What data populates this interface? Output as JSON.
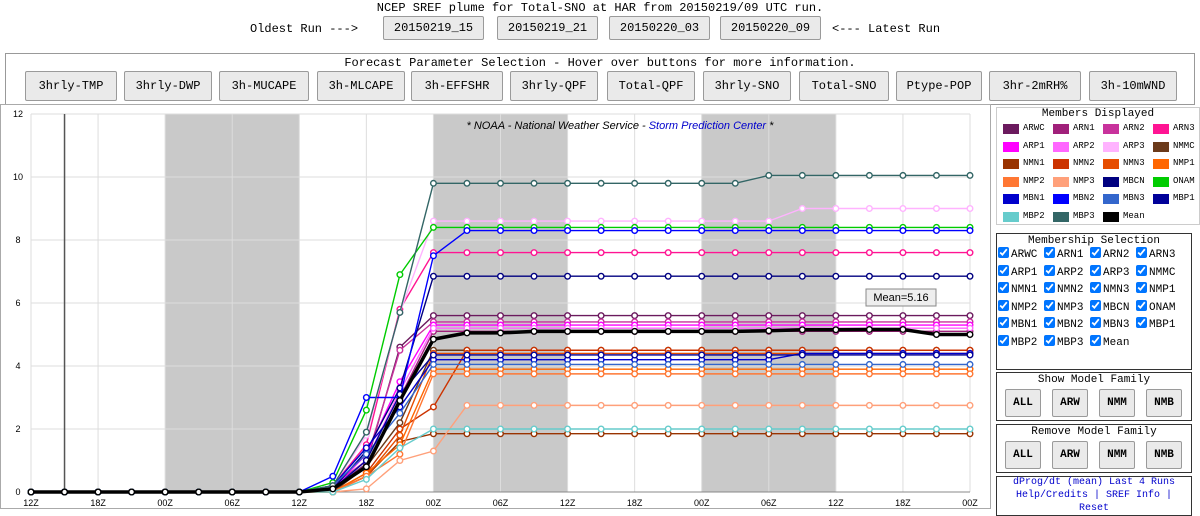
{
  "header": {
    "title": "NCEP SREF plume for Total-SNO at HAR from 20150219/09 UTC run.",
    "oldest_label": "Oldest Run --->",
    "runs": [
      "20150219_15",
      "20150219_21",
      "20150220_03",
      "20150220_09"
    ],
    "latest_label": "<--- Latest Run"
  },
  "parameters": {
    "title": "Forecast Parameter Selection - Hover over buttons for more information.",
    "buttons": [
      "3hrly-TMP",
      "3hrly-DWP",
      "3h-MUCAPE",
      "3h-MLCAPE",
      "3h-EFFSHR",
      "3hrly-QPF",
      "Total-QPF",
      "3hrly-SNO",
      "Total-SNO",
      "Ptype-POP",
      "3hr-2mRH%",
      "3h-10mWND"
    ]
  },
  "chart_data": {
    "type": "line",
    "watermark": {
      "prefix": "* NOAA - National Weather Service - ",
      "link": "Storm Prediction Center",
      "suffix": " *"
    },
    "categories": [
      "12Z",
      null,
      "18Z",
      null,
      "00Z",
      null,
      "06Z",
      null,
      "12Z",
      null,
      "18Z",
      null,
      "00Z",
      null,
      "06Z",
      null,
      "12Z",
      null,
      "18Z",
      null,
      "00Z",
      null,
      "06Z",
      null,
      "12Z",
      null,
      "18Z",
      null,
      "00Z"
    ],
    "ylim": [
      0,
      12
    ],
    "yticks": [
      0,
      2,
      4,
      6,
      8,
      10,
      12
    ],
    "grid": true,
    "tooltip": "Mean=5.16",
    "series": [
      {
        "name": "ARWC",
        "color": "#6b1a5e",
        "values": [
          0,
          0,
          0,
          0,
          0,
          0,
          0,
          0,
          0,
          0.1,
          0.9,
          4.6,
          5.6,
          5.6,
          5.6,
          5.6,
          5.6,
          5.6,
          5.6,
          5.6,
          5.6,
          5.6,
          5.6,
          5.6,
          5.6,
          5.6,
          5.6,
          5.6,
          5.6
        ]
      },
      {
        "name": "ARN1",
        "color": "#a0207a",
        "values": [
          0,
          0,
          0,
          0,
          0,
          0,
          0,
          0,
          0,
          0.1,
          0.8,
          3.0,
          5.1,
          5.1,
          5.1,
          5.1,
          5.1,
          5.1,
          5.1,
          5.1,
          5.1,
          5.1,
          5.1,
          5.1,
          5.1,
          5.1,
          5.1,
          5.1,
          5.1
        ]
      },
      {
        "name": "ARN2",
        "color": "#c8329c",
        "values": [
          0,
          0,
          0,
          0,
          0,
          0,
          0,
          0,
          0,
          0.2,
          1.0,
          4.5,
          5.4,
          5.4,
          5.4,
          5.4,
          5.4,
          5.4,
          5.4,
          5.4,
          5.4,
          5.4,
          5.4,
          5.4,
          5.4,
          5.4,
          5.4,
          5.4,
          5.4
        ]
      },
      {
        "name": "ARN3",
        "color": "#ff1493",
        "values": [
          0,
          0,
          0,
          0,
          0,
          0,
          0,
          0,
          0,
          0.2,
          1.5,
          5.8,
          7.6,
          7.6,
          7.6,
          7.6,
          7.6,
          7.6,
          7.6,
          7.6,
          7.6,
          7.6,
          7.6,
          7.6,
          7.6,
          7.6,
          7.6,
          7.6,
          7.6
        ]
      },
      {
        "name": "ARP1",
        "color": "#ff00ff",
        "values": [
          0,
          0,
          0,
          0,
          0,
          0,
          0,
          0,
          0,
          0.1,
          1.2,
          3.5,
          5.3,
          5.3,
          5.3,
          5.3,
          5.3,
          5.3,
          5.3,
          5.3,
          5.3,
          5.3,
          5.3,
          5.3,
          5.3,
          5.3,
          5.3,
          5.3,
          5.3
        ]
      },
      {
        "name": "ARP2",
        "color": "#ff66ff",
        "values": [
          0,
          0,
          0,
          0,
          0,
          0,
          0,
          0,
          0,
          0.1,
          1.0,
          3.2,
          5.2,
          5.2,
          5.2,
          5.2,
          5.2,
          5.2,
          5.2,
          5.2,
          5.2,
          5.2,
          5.2,
          5.2,
          5.2,
          5.2,
          5.2,
          5.2,
          5.2
        ]
      },
      {
        "name": "ARP3",
        "color": "#ffb3ff",
        "values": [
          0,
          0,
          0,
          0,
          0,
          0,
          0,
          0,
          0,
          0.2,
          1.8,
          5.7,
          8.6,
          8.6,
          8.6,
          8.6,
          8.6,
          8.6,
          8.6,
          8.6,
          8.6,
          8.6,
          8.6,
          9.0,
          9.0,
          9.0,
          9.0,
          9.0,
          9.0
        ]
      },
      {
        "name": "NMMC",
        "color": "#6b3a1a",
        "values": [
          0,
          0,
          0,
          0,
          0,
          0,
          0,
          0,
          0,
          0,
          0.8,
          2.2,
          4.5,
          4.5,
          4.5,
          4.5,
          4.5,
          4.5,
          4.5,
          4.5,
          4.5,
          4.5,
          4.5,
          4.5,
          4.5,
          4.5,
          4.5,
          4.5,
          4.5
        ]
      },
      {
        "name": "NMN1",
        "color": "#993300",
        "values": [
          0,
          0,
          0,
          0,
          0,
          0,
          0,
          0,
          0,
          0,
          0.5,
          1.6,
          1.85,
          1.85,
          1.85,
          1.85,
          1.85,
          1.85,
          1.85,
          1.85,
          1.85,
          1.85,
          1.85,
          1.85,
          1.85,
          1.85,
          1.85,
          1.85,
          1.85
        ]
      },
      {
        "name": "NMN2",
        "color": "#cc3300",
        "values": [
          0,
          0,
          0,
          0,
          0,
          0,
          0,
          0,
          0,
          0,
          0.6,
          2.0,
          2.7,
          4.5,
          4.5,
          4.5,
          4.5,
          4.5,
          4.5,
          4.5,
          4.5,
          4.5,
          4.5,
          4.5,
          4.5,
          4.5,
          4.5,
          4.5,
          4.5
        ]
      },
      {
        "name": "NMN3",
        "color": "#e64d00",
        "values": [
          0,
          0,
          0,
          0,
          0,
          0,
          0,
          0,
          0,
          0,
          0.5,
          1.8,
          4.4,
          4.4,
          4.4,
          4.4,
          4.4,
          4.4,
          4.4,
          4.4,
          4.4,
          4.4,
          4.4,
          4.4,
          4.4,
          4.4,
          4.4,
          4.4,
          4.4
        ]
      },
      {
        "name": "NMP1",
        "color": "#ff6600",
        "values": [
          0,
          0,
          0,
          0,
          0,
          0,
          0,
          0,
          0,
          0,
          0.6,
          1.5,
          3.9,
          3.9,
          3.9,
          3.9,
          3.9,
          3.9,
          3.9,
          3.9,
          3.9,
          3.9,
          3.9,
          3.9,
          3.9,
          3.9,
          3.9,
          3.9,
          3.9
        ]
      },
      {
        "name": "NMP2",
        "color": "#ff7733",
        "values": [
          0,
          0,
          0,
          0,
          0,
          0,
          0,
          0,
          0,
          0,
          0.5,
          1.2,
          3.75,
          3.75,
          3.75,
          3.75,
          3.75,
          3.75,
          3.75,
          3.75,
          3.75,
          3.75,
          3.75,
          3.75,
          3.75,
          3.75,
          3.75,
          3.75,
          3.75
        ]
      },
      {
        "name": "NMP3",
        "color": "#ffa07a",
        "values": [
          0,
          0,
          0,
          0,
          0,
          0,
          0,
          0,
          0,
          0,
          0.1,
          1.0,
          1.3,
          2.75,
          2.75,
          2.75,
          2.75,
          2.75,
          2.75,
          2.75,
          2.75,
          2.75,
          2.75,
          2.75,
          2.75,
          2.75,
          2.75,
          2.75,
          2.75
        ]
      },
      {
        "name": "MBCN",
        "color": "#000080",
        "values": [
          0,
          0,
          0,
          0,
          0,
          0,
          0,
          0,
          0,
          0.1,
          1.3,
          3.3,
          6.85,
          6.85,
          6.85,
          6.85,
          6.85,
          6.85,
          6.85,
          6.85,
          6.85,
          6.85,
          6.85,
          6.85,
          6.85,
          6.85,
          6.85,
          6.85,
          6.85
        ]
      },
      {
        "name": "ONAM",
        "color": "#00cc00",
        "values": [
          0,
          0,
          0,
          0,
          0,
          0,
          0,
          0,
          0,
          0.3,
          2.6,
          6.9,
          8.4,
          8.4,
          8.4,
          8.4,
          8.4,
          8.4,
          8.4,
          8.4,
          8.4,
          8.4,
          8.4,
          8.4,
          8.4,
          8.4,
          8.4,
          8.4,
          8.4
        ]
      },
      {
        "name": "MBN1",
        "color": "#0000cc",
        "values": [
          0,
          0,
          0,
          0,
          0,
          0,
          0,
          0,
          0,
          0.2,
          1.4,
          2.7,
          4.2,
          4.2,
          4.2,
          4.2,
          4.2,
          4.2,
          4.2,
          4.2,
          4.2,
          4.2,
          4.2,
          4.4,
          4.4,
          4.4,
          4.4,
          4.4,
          4.4
        ]
      },
      {
        "name": "MBN2",
        "color": "#0000ff",
        "values": [
          0,
          0,
          0,
          0,
          0,
          0,
          0,
          0,
          0,
          0.5,
          3.0,
          3.0,
          7.5,
          8.3,
          8.3,
          8.3,
          8.3,
          8.3,
          8.3,
          8.3,
          8.3,
          8.3,
          8.3,
          8.3,
          8.3,
          8.3,
          8.3,
          8.3,
          8.3
        ]
      },
      {
        "name": "MBN3",
        "color": "#3366cc",
        "values": [
          0,
          0,
          0,
          0,
          0,
          0,
          0,
          0,
          0,
          0.2,
          1.2,
          2.5,
          4.05,
          4.05,
          4.05,
          4.05,
          4.05,
          4.05,
          4.05,
          4.05,
          4.05,
          4.05,
          4.05,
          4.05,
          4.05,
          4.05,
          4.05,
          4.05,
          4.05
        ]
      },
      {
        "name": "MBP1",
        "color": "#000099",
        "values": [
          0,
          0,
          0,
          0,
          0,
          0,
          0,
          0,
          0,
          0.1,
          1.0,
          3.1,
          4.35,
          4.35,
          4.35,
          4.35,
          4.35,
          4.35,
          4.35,
          4.35,
          4.35,
          4.35,
          4.35,
          4.35,
          4.35,
          4.35,
          4.35,
          4.35,
          4.35
        ]
      },
      {
        "name": "MBP2",
        "color": "#66cccc",
        "values": [
          0,
          0,
          0,
          0,
          0,
          0,
          0,
          0,
          0,
          0,
          0.4,
          1.4,
          2.0,
          2.0,
          2.0,
          2.0,
          2.0,
          2.0,
          2.0,
          2.0,
          2.0,
          2.0,
          2.0,
          2.0,
          2.0,
          2.0,
          2.0,
          2.0,
          2.0
        ]
      },
      {
        "name": "MBP3",
        "color": "#336666",
        "values": [
          0,
          0,
          0,
          0,
          0,
          0,
          0,
          0,
          0,
          0.2,
          1.9,
          5.7,
          9.8,
          9.8,
          9.8,
          9.8,
          9.8,
          9.8,
          9.8,
          9.8,
          9.8,
          9.8,
          10.05,
          10.05,
          10.05,
          10.05,
          10.05,
          10.05,
          10.05
        ]
      },
      {
        "name": "Mean",
        "color": "#000000",
        "values": [
          0,
          0,
          0,
          0,
          0,
          0,
          0,
          0,
          0,
          0.1,
          0.8,
          2.9,
          4.85,
          5.05,
          5.05,
          5.1,
          5.1,
          5.1,
          5.1,
          5.1,
          5.1,
          5.1,
          5.12,
          5.15,
          5.15,
          5.16,
          5.16,
          5.0,
          5.0
        ]
      }
    ]
  },
  "sidebar": {
    "members_title": "Members Displayed",
    "selection_title": "Membership Selection",
    "show_family": {
      "title": "Show Model Family",
      "buttons": [
        "ALL",
        "ARW",
        "NMM",
        "NMB"
      ]
    },
    "remove_family": {
      "title": "Remove Model Family",
      "buttons": [
        "ALL",
        "ARW",
        "NMM",
        "NMB"
      ]
    },
    "footer_lines": [
      "dProg/dt (mean) Last 4 Runs",
      "Help/Credits | SREF Info |",
      "Reset"
    ]
  }
}
